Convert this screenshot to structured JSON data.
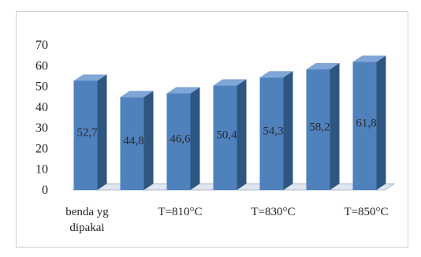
{
  "chart_data": {
    "type": "bar",
    "categories": [
      "benda yg\ndipakai",
      "",
      "T=810°C",
      "",
      "T=830°C",
      "",
      "T=850°C"
    ],
    "values": [
      52.7,
      44.8,
      46.6,
      50.4,
      54.3,
      58.2,
      61.8
    ],
    "data_labels": [
      "52,7",
      "44,8",
      "46,6",
      "50,4",
      "54,3",
      "58,2",
      "61,8"
    ],
    "ylim": [
      0,
      70
    ],
    "yticks": [
      0,
      10,
      20,
      30,
      40,
      50,
      60,
      70
    ],
    "title": "",
    "xlabel": "",
    "ylabel": "",
    "grid": false,
    "legend": "none",
    "style": "3d-column",
    "colors": {
      "front": "#4f81bd",
      "side": "#2f5680",
      "top": "#7fa6d6",
      "floor": "#dfe6f0"
    }
  }
}
